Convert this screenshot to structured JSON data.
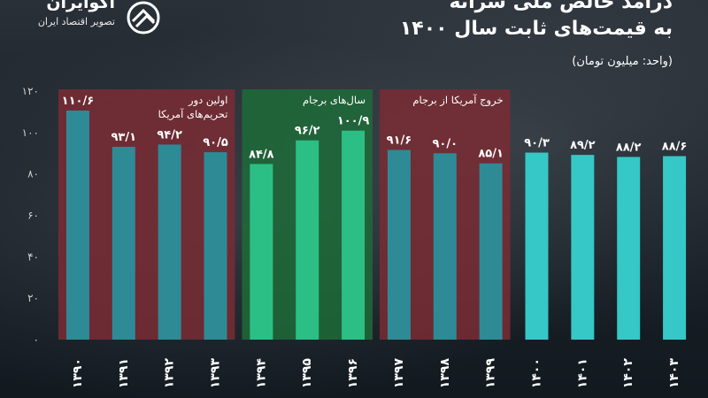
{
  "header": {
    "title_line1": "درآمد خالص ملی سرانه",
    "title_line2": "به قیمت‌های ثابت سال ۱۴۰۰",
    "unit": "(واحد: میلیون تومان)"
  },
  "brand": {
    "name": "آکوایران",
    "tagline": "تصویر اقتصاد ایران"
  },
  "colors": {
    "band_sanctions": "#7a2c34",
    "band_jcpoa": "#1f6b38",
    "bar_red": "#2e8a95",
    "bar_green": "#2bbf85",
    "bar_default": "#35c8c6"
  },
  "chart_data": {
    "type": "bar",
    "categories": [
      "۱۳۹۰",
      "۱۳۹۱",
      "۱۳۹۲",
      "۱۳۹۳",
      "۱۳۹۴",
      "۱۳۹۵",
      "۱۳۹۶",
      "۱۳۹۷",
      "۱۳۹۸",
      "۱۳۹۹",
      "۱۴۰۰",
      "۱۴۰۱",
      "۱۴۰۲",
      "۱۴۰۳"
    ],
    "values": [
      110.6,
      93.1,
      94.2,
      90.5,
      84.8,
      96.2,
      100.9,
      91.6,
      90.0,
      85.1,
      90.3,
      89.2,
      88.2,
      88.6
    ],
    "value_labels": [
      "۱۱۰/۶",
      "۹۳/۱",
      "۹۴/۲",
      "۹۰/۵",
      "۸۴/۸",
      "۹۶/۲",
      "۱۰۰/۹",
      "۹۱/۶",
      "۹۰/۰",
      "۸۵/۱",
      "۹۰/۳",
      "۸۹/۲",
      "۸۸/۲",
      "۸۸/۶"
    ],
    "ylim": [
      0,
      120
    ],
    "yticks": [
      0,
      20,
      40,
      60,
      80,
      100,
      120
    ],
    "ytick_labels": [
      "۰",
      "۲۰",
      "۴۰",
      "۶۰",
      "۸۰",
      "۱۰۰",
      "۱۲۰"
    ],
    "grid": false,
    "bands": [
      {
        "label_lines": [
          "اولین دور",
          "تحریم‌های آمریکا"
        ],
        "start": 0,
        "end": 3,
        "color_key": "band_sanctions",
        "bar_color_key": "bar_red"
      },
      {
        "label_lines": [
          "سال‌های برجام"
        ],
        "start": 4,
        "end": 6,
        "color_key": "band_jcpoa",
        "bar_color_key": "bar_green"
      },
      {
        "label_lines": [
          "خروج آمریکا از برجام"
        ],
        "start": 7,
        "end": 9,
        "color_key": "band_sanctions",
        "bar_color_key": "bar_red"
      }
    ]
  }
}
